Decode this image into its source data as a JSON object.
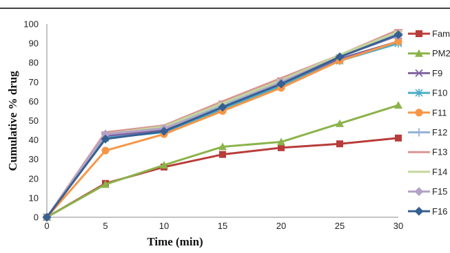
{
  "chart_data": {
    "type": "line",
    "xlabel": "Time (min)",
    "ylabel": "Cumulative % drug",
    "x": [
      0,
      5,
      10,
      15,
      20,
      25,
      30
    ],
    "xticks": [
      "0",
      "5",
      "10",
      "15",
      "20",
      "25",
      "30"
    ],
    "yticks": [
      "0",
      "10",
      "20",
      "30",
      "40",
      "50",
      "60",
      "70",
      "80",
      "90",
      "100"
    ],
    "xlim": [
      0,
      30
    ],
    "ylim": [
      0,
      100
    ],
    "grid": false,
    "legend_position": "right",
    "series": [
      {
        "name": "Fam",
        "color": "#b83c3a",
        "marker": "square",
        "values": [
          0,
          17.5,
          26,
          32.5,
          36,
          38,
          41
        ]
      },
      {
        "name": "PM2",
        "color": "#8bb34a",
        "marker": "triangle",
        "values": [
          0,
          17,
          27,
          36.5,
          39,
          48.5,
          58
        ]
      },
      {
        "name": "F9",
        "color": "#8064a2",
        "marker": "x",
        "values": [
          0,
          42,
          45,
          56,
          68,
          82,
          91
        ]
      },
      {
        "name": "F10",
        "color": "#4bacc6",
        "marker": "star",
        "values": [
          0,
          41,
          44,
          56,
          68,
          81,
          90
        ]
      },
      {
        "name": "F11",
        "color": "#f79646",
        "marker": "circle",
        "values": [
          0,
          34.5,
          43,
          55,
          67,
          81,
          91
        ]
      },
      {
        "name": "F12",
        "color": "#95b3d7",
        "marker": "plus",
        "values": [
          0,
          43,
          46,
          58,
          70,
          83,
          95
        ]
      },
      {
        "name": "F13",
        "color": "#d99694",
        "marker": "dash",
        "values": [
          0,
          44,
          47.5,
          60,
          72,
          84,
          97
        ]
      },
      {
        "name": "F14",
        "color": "#c3d69b",
        "marker": "dash",
        "values": [
          0,
          43,
          47,
          59,
          71,
          84,
          96
        ]
      },
      {
        "name": "F15",
        "color": "#b3a2c7",
        "marker": "diamond",
        "values": [
          0,
          43,
          46,
          57,
          70,
          83,
          94
        ]
      },
      {
        "name": "F16",
        "color": "#376092",
        "marker": "diamond",
        "values": [
          0,
          40.5,
          44.5,
          57,
          69,
          83,
          94.5
        ]
      }
    ]
  }
}
